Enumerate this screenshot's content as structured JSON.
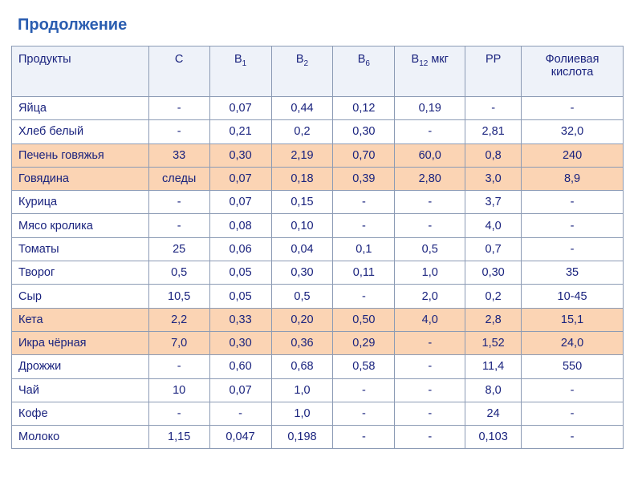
{
  "title": "Продолжение",
  "table": {
    "highlight_color": "#fbd4b4",
    "header": [
      {
        "main": "Продукты"
      },
      {
        "main": "C"
      },
      {
        "main": "B",
        "sub": "1"
      },
      {
        "main": "B",
        "sub": "2"
      },
      {
        "main": "B",
        "sub": "6"
      },
      {
        "main": "B",
        "sub": "12",
        "rest": " мкг"
      },
      {
        "main": "PP"
      },
      {
        "main": "Фолиевая кислота"
      }
    ],
    "rows": [
      {
        "cells": [
          "Яйца",
          "-",
          "0,07",
          "0,44",
          "0,12",
          "0,19",
          "-",
          "-"
        ]
      },
      {
        "cells": [
          "Хлеб белый",
          "-",
          "0,21",
          "0,2",
          "0,30",
          "-",
          "2,81",
          "32,0"
        ]
      },
      {
        "cells": [
          "Печень говяжья",
          "33",
          "0,30",
          "2,19",
          "0,70",
          "60,0",
          "0,8",
          "240"
        ],
        "highlighted": true
      },
      {
        "cells": [
          "Говядина",
          "следы",
          "0,07",
          "0,18",
          "0,39",
          "2,80",
          "3,0",
          "8,9"
        ],
        "highlighted": true
      },
      {
        "cells": [
          "Курица",
          "-",
          "0,07",
          "0,15",
          "-",
          "-",
          "3,7",
          "-"
        ]
      },
      {
        "cells": [
          "Мясо кролика",
          "-",
          "0,08",
          "0,10",
          "-",
          "-",
          "4,0",
          "-"
        ]
      },
      {
        "cells": [
          "Томаты",
          "25",
          "0,06",
          "0,04",
          "0,1",
          "0,5",
          "0,7",
          "-"
        ]
      },
      {
        "cells": [
          "Творог",
          "0,5",
          "0,05",
          "0,30",
          "0,11",
          "1,0",
          "0,30",
          "35"
        ]
      },
      {
        "cells": [
          "Сыр",
          "10,5",
          "0,05",
          "0,5",
          "-",
          "2,0",
          "0,2",
          "10-45"
        ]
      },
      {
        "cells": [
          "Кета",
          "2,2",
          "0,33",
          "0,20",
          "0,50",
          "4,0",
          "2,8",
          "15,1"
        ],
        "highlighted": true
      },
      {
        "cells": [
          "Икра чёрная",
          "7,0",
          "0,30",
          "0,36",
          "0,29",
          "-",
          "1,52",
          "24,0"
        ],
        "highlighted": true
      },
      {
        "cells": [
          "Дрожжи",
          "-",
          "0,60",
          "0,68",
          "0,58",
          "-",
          "11,4",
          "550"
        ]
      },
      {
        "cells": [
          "Чай",
          "10",
          "0,07",
          "1,0",
          "-",
          "-",
          "8,0",
          "-"
        ]
      },
      {
        "cells": [
          "Кофе",
          "-",
          "-",
          "1,0",
          "-",
          "-",
          "24",
          "-"
        ]
      },
      {
        "cells": [
          "Молоко",
          "1,15",
          "0,047",
          "0,198",
          "-",
          "-",
          "0,103",
          "-"
        ]
      }
    ]
  }
}
